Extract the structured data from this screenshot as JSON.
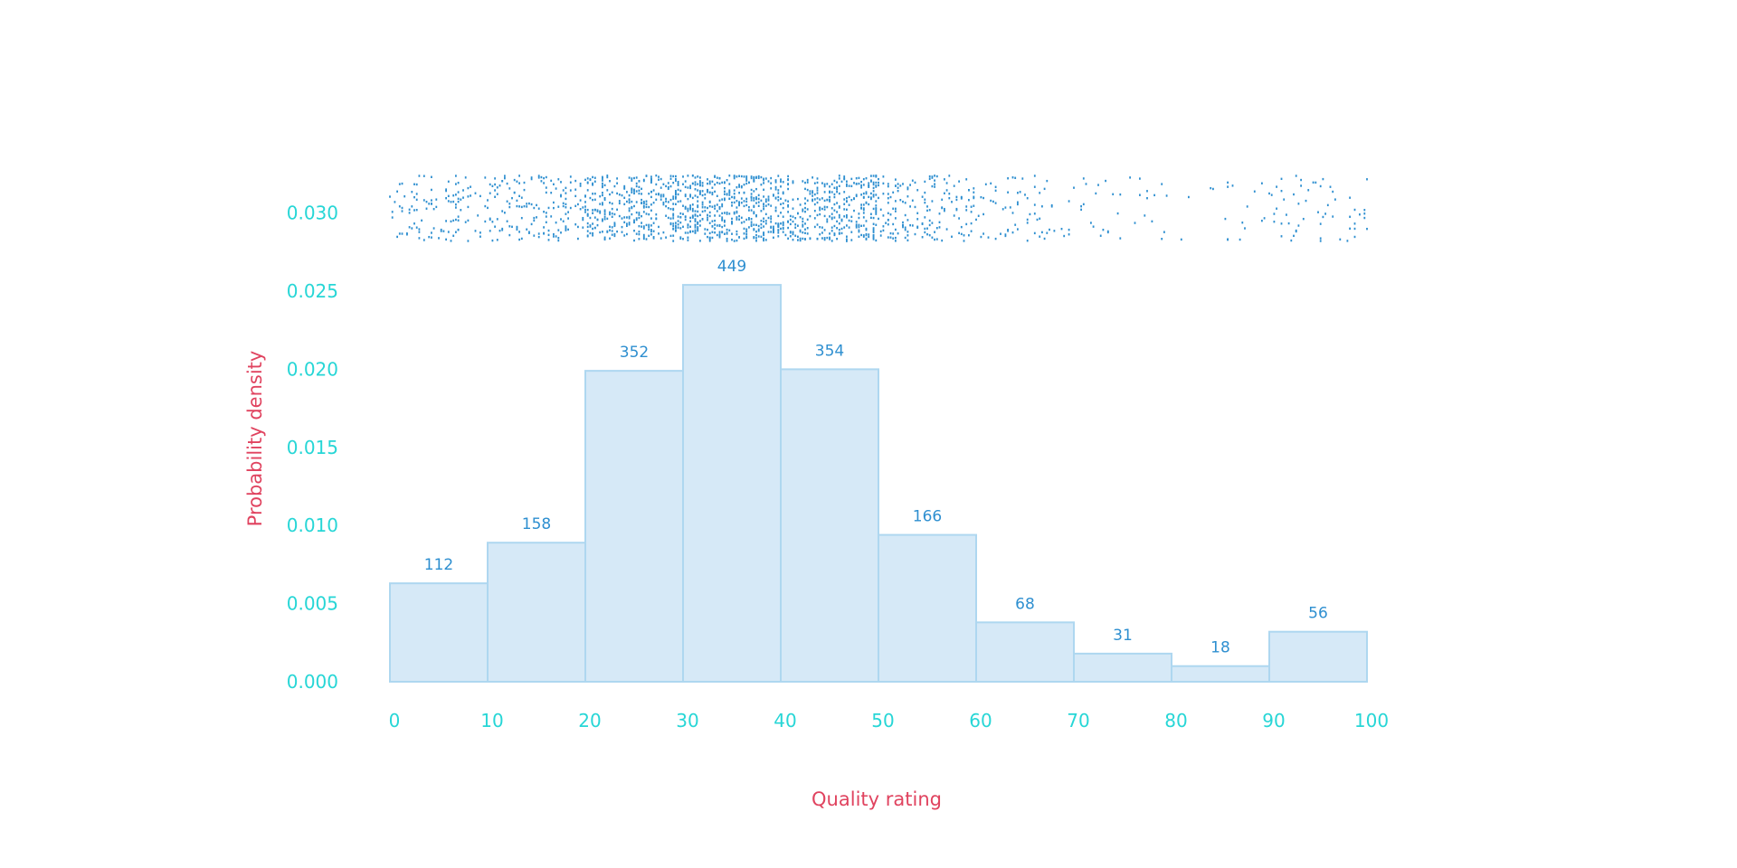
{
  "chart_data": {
    "type": "bar",
    "subtype": "histogram",
    "xlabel": "Quality rating",
    "ylabel": "Probability density",
    "xlim": [
      0,
      100
    ],
    "ylim": [
      0,
      0.0325
    ],
    "bin_edges": [
      0,
      10,
      20,
      30,
      40,
      50,
      60,
      70,
      80,
      90,
      100
    ],
    "counts": [
      112,
      158,
      352,
      449,
      354,
      166,
      68,
      31,
      18,
      56
    ],
    "densities": [
      0.0063,
      0.0089,
      0.0199,
      0.0254,
      0.02,
      0.0094,
      0.0038,
      0.0018,
      0.001,
      0.0032
    ],
    "xticks": [
      "0",
      "10",
      "20",
      "30",
      "40",
      "50",
      "60",
      "70",
      "80",
      "90",
      "100"
    ],
    "yticks": [
      "0.000",
      "0.005",
      "0.010",
      "0.015",
      "0.020",
      "0.025",
      "0.030"
    ],
    "ytick_values": [
      0,
      0.005,
      0.01,
      0.015,
      0.02,
      0.025,
      0.03
    ],
    "rug": {
      "description": "Strip of individual observations (rug/strip plot) shown above the histogram",
      "y_range": [
        0.0282,
        0.0324
      ]
    },
    "grid": false,
    "legend": "none"
  },
  "colors": {
    "bar_fill": "#d6e9f7",
    "bar_edge": "#aed7f0",
    "bar_label": "#2e8fd0",
    "rug_mark": "#2e8fd0",
    "tick_label": "#27d6d6",
    "axis_title": "#e0435f"
  }
}
